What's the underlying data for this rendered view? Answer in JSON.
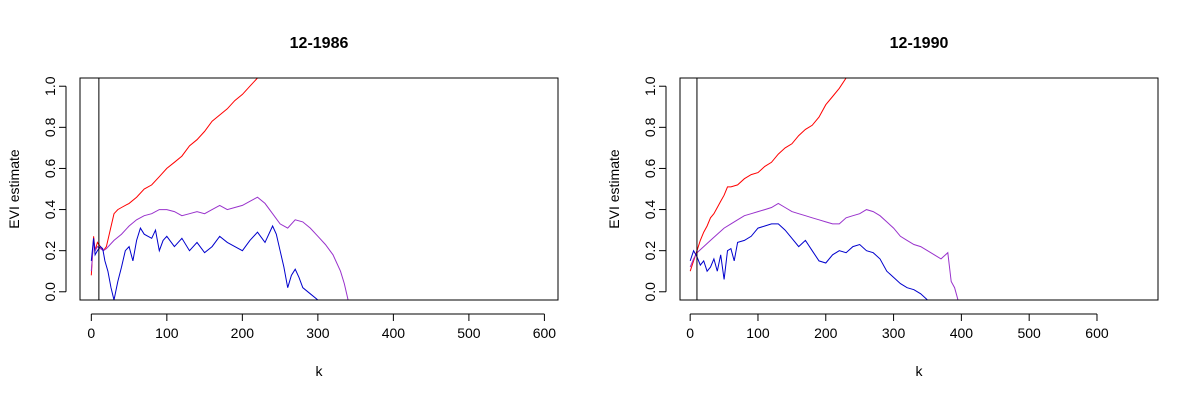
{
  "chart_data": [
    {
      "type": "line",
      "title": "12-1986",
      "xlabel": "k",
      "ylabel": "EVI estimate",
      "xlim": [
        -15,
        618
      ],
      "ylim": [
        -0.04,
        1.04
      ],
      "xticks": [
        0,
        100,
        200,
        300,
        400,
        500,
        600
      ],
      "yticks": [
        0.0,
        0.2,
        0.4,
        0.6,
        0.8,
        1.0
      ],
      "xtick_labels": [
        "0",
        "100",
        "200",
        "300",
        "400",
        "500",
        "600"
      ],
      "ytick_labels": [
        "0.0",
        "0.2",
        "0.4",
        "0.6",
        "0.8",
        "1.0"
      ],
      "grid": false,
      "vline": 10,
      "series": [
        {
          "color": "#ff0000",
          "x": [
            0,
            3,
            5,
            8,
            12,
            16,
            20,
            25,
            30,
            35,
            40,
            50,
            60,
            70,
            80,
            90,
            100,
            110,
            120,
            130,
            140,
            150,
            160,
            170,
            180,
            190,
            200,
            210,
            220
          ],
          "y": [
            0.08,
            0.27,
            0.2,
            0.24,
            0.22,
            0.2,
            0.22,
            0.3,
            0.38,
            0.4,
            0.41,
            0.43,
            0.46,
            0.5,
            0.52,
            0.56,
            0.6,
            0.63,
            0.66,
            0.71,
            0.74,
            0.78,
            0.83,
            0.86,
            0.89,
            0.93,
            0.96,
            1.0,
            1.04
          ]
        },
        {
          "color": "#9932cc",
          "x": [
            0,
            3,
            5,
            8,
            12,
            16,
            20,
            30,
            40,
            50,
            60,
            70,
            80,
            90,
            100,
            110,
            120,
            130,
            140,
            150,
            160,
            170,
            180,
            190,
            200,
            210,
            220,
            230,
            240,
            250,
            260,
            270,
            280,
            290,
            300,
            310,
            320,
            330,
            335,
            340
          ],
          "y": [
            0.1,
            0.25,
            0.2,
            0.22,
            0.21,
            0.2,
            0.21,
            0.25,
            0.28,
            0.32,
            0.35,
            0.37,
            0.38,
            0.4,
            0.4,
            0.39,
            0.37,
            0.38,
            0.39,
            0.38,
            0.4,
            0.42,
            0.4,
            0.41,
            0.42,
            0.44,
            0.46,
            0.43,
            0.38,
            0.33,
            0.31,
            0.35,
            0.34,
            0.31,
            0.27,
            0.23,
            0.18,
            0.1,
            0.04,
            -0.04
          ]
        },
        {
          "color": "#0000cd",
          "x": [
            0,
            3,
            5,
            8,
            12,
            15,
            18,
            22,
            26,
            30,
            35,
            40,
            45,
            50,
            55,
            60,
            65,
            70,
            75,
            80,
            85,
            90,
            95,
            100,
            110,
            120,
            130,
            140,
            150,
            160,
            170,
            180,
            190,
            200,
            210,
            220,
            230,
            240,
            245,
            250,
            255,
            260,
            265,
            270,
            275,
            280,
            290,
            300
          ],
          "y": [
            0.15,
            0.26,
            0.18,
            0.2,
            0.22,
            0.21,
            0.15,
            0.1,
            0.02,
            -0.04,
            0.05,
            0.12,
            0.2,
            0.22,
            0.15,
            0.25,
            0.31,
            0.28,
            0.27,
            0.26,
            0.3,
            0.2,
            0.25,
            0.27,
            0.22,
            0.26,
            0.2,
            0.24,
            0.19,
            0.22,
            0.27,
            0.24,
            0.22,
            0.2,
            0.25,
            0.29,
            0.24,
            0.32,
            0.28,
            0.2,
            0.12,
            0.02,
            0.08,
            0.11,
            0.07,
            0.02,
            -0.01,
            -0.04
          ]
        }
      ]
    },
    {
      "type": "line",
      "title": "12-1990",
      "xlabel": "k",
      "ylabel": "EVI estimate",
      "xlim": [
        -15,
        690
      ],
      "ylim": [
        -0.04,
        1.04
      ],
      "xticks": [
        0,
        100,
        200,
        300,
        400,
        500,
        600
      ],
      "yticks": [
        0.0,
        0.2,
        0.4,
        0.6,
        0.8,
        1.0
      ],
      "xtick_labels": [
        "0",
        "100",
        "200",
        "300",
        "400",
        "500",
        "600"
      ],
      "ytick_labels": [
        "0.0",
        "0.2",
        "0.4",
        "0.6",
        "0.8",
        "1.0"
      ],
      "grid": false,
      "vline": 10,
      "series": [
        {
          "color": "#ff0000",
          "x": [
            0,
            5,
            10,
            15,
            20,
            25,
            30,
            35,
            40,
            45,
            50,
            55,
            60,
            70,
            80,
            90,
            100,
            110,
            120,
            130,
            140,
            150,
            160,
            170,
            180,
            190,
            200,
            210,
            220,
            230
          ],
          "y": [
            0.1,
            0.15,
            0.2,
            0.25,
            0.29,
            0.32,
            0.36,
            0.38,
            0.41,
            0.44,
            0.47,
            0.51,
            0.51,
            0.52,
            0.55,
            0.57,
            0.58,
            0.61,
            0.63,
            0.67,
            0.7,
            0.72,
            0.76,
            0.79,
            0.81,
            0.85,
            0.91,
            0.95,
            0.99,
            1.04
          ]
        },
        {
          "color": "#9932cc",
          "x": [
            0,
            5,
            10,
            20,
            30,
            40,
            50,
            60,
            70,
            80,
            90,
            100,
            110,
            120,
            130,
            140,
            150,
            160,
            170,
            180,
            190,
            200,
            210,
            220,
            230,
            240,
            250,
            260,
            270,
            280,
            290,
            300,
            310,
            320,
            330,
            340,
            350,
            360,
            370,
            380,
            385,
            390,
            395
          ],
          "y": [
            0.12,
            0.16,
            0.19,
            0.22,
            0.25,
            0.28,
            0.31,
            0.33,
            0.35,
            0.37,
            0.38,
            0.39,
            0.4,
            0.41,
            0.43,
            0.41,
            0.39,
            0.38,
            0.37,
            0.36,
            0.35,
            0.34,
            0.33,
            0.33,
            0.36,
            0.37,
            0.38,
            0.4,
            0.39,
            0.37,
            0.34,
            0.31,
            0.27,
            0.25,
            0.23,
            0.22,
            0.2,
            0.18,
            0.16,
            0.19,
            0.05,
            0.02,
            -0.04
          ]
        },
        {
          "color": "#0000cd",
          "x": [
            0,
            5,
            10,
            15,
            20,
            25,
            30,
            35,
            40,
            45,
            50,
            55,
            60,
            65,
            70,
            80,
            90,
            100,
            110,
            120,
            130,
            140,
            150,
            160,
            170,
            180,
            190,
            200,
            210,
            220,
            230,
            240,
            250,
            260,
            270,
            280,
            290,
            300,
            310,
            320,
            330,
            340,
            350
          ],
          "y": [
            0.15,
            0.2,
            0.17,
            0.13,
            0.15,
            0.1,
            0.12,
            0.16,
            0.1,
            0.18,
            0.06,
            0.2,
            0.21,
            0.15,
            0.24,
            0.25,
            0.27,
            0.31,
            0.32,
            0.33,
            0.33,
            0.3,
            0.26,
            0.22,
            0.25,
            0.2,
            0.15,
            0.14,
            0.18,
            0.2,
            0.19,
            0.22,
            0.23,
            0.2,
            0.19,
            0.16,
            0.1,
            0.07,
            0.04,
            0.02,
            0.01,
            -0.01,
            -0.04
          ]
        }
      ]
    }
  ]
}
